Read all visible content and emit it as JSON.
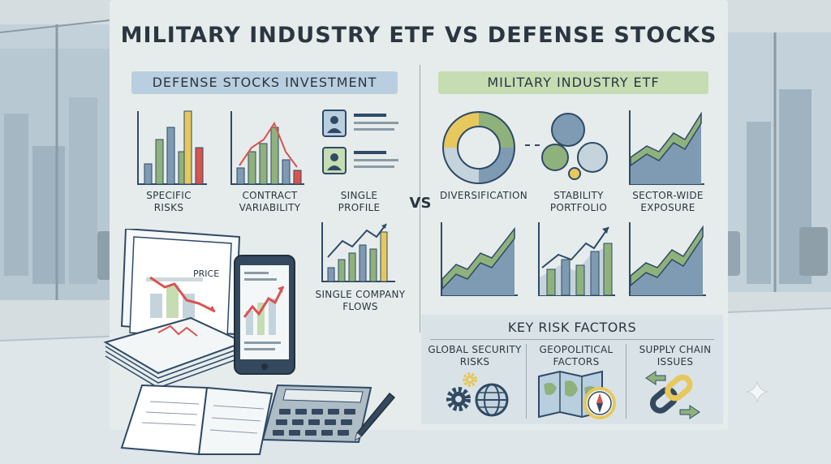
{
  "title": "MILITARY INDUSTRY ETF VS DEFENSE STOCKS",
  "vs_label": "VS",
  "left": {
    "header": "DEFENSE STOCKS INVESTMENT",
    "items": [
      {
        "label": "SPECIFIC RISKS"
      },
      {
        "label": "CONTRACT VARIABILITY"
      },
      {
        "label": "SINGLE PROFILE"
      },
      {
        "label": "SINGLE COMPANY FLOWS"
      }
    ],
    "document_label": "PRICE"
  },
  "right": {
    "header": "MILITARY INDUSTRY ETF",
    "items": [
      {
        "label": "DIVERSIFICATION"
      },
      {
        "label": "STABILITY PORTFOLIO"
      },
      {
        "label": "SECTOR-WIDE EXPOSURE"
      }
    ],
    "risk_header": "KEY RISK FACTORS",
    "risks": [
      {
        "label": "GLOBAL SECURITY RISKS"
      },
      {
        "label": "GEOPOLITICAL FACTORS"
      },
      {
        "label": "SUPPLY CHAIN ISSUES"
      }
    ]
  },
  "colors": {
    "navy": "#2f4a66",
    "green": "#8fb27c",
    "yellow": "#e6c85c",
    "red": "#d9534f",
    "blue_fill": "#7f9bb3",
    "left_header_bg": "#b9cfe0",
    "right_header_bg": "#c6dcb3"
  },
  "icons": [
    "gears-icon",
    "globe-icon",
    "map-icon",
    "compass-icon",
    "chain-link-icon",
    "arrows-icon",
    "calculator-icon",
    "smartphone-icon",
    "notebook-icon",
    "pen-icon",
    "sparkle-icon"
  ]
}
